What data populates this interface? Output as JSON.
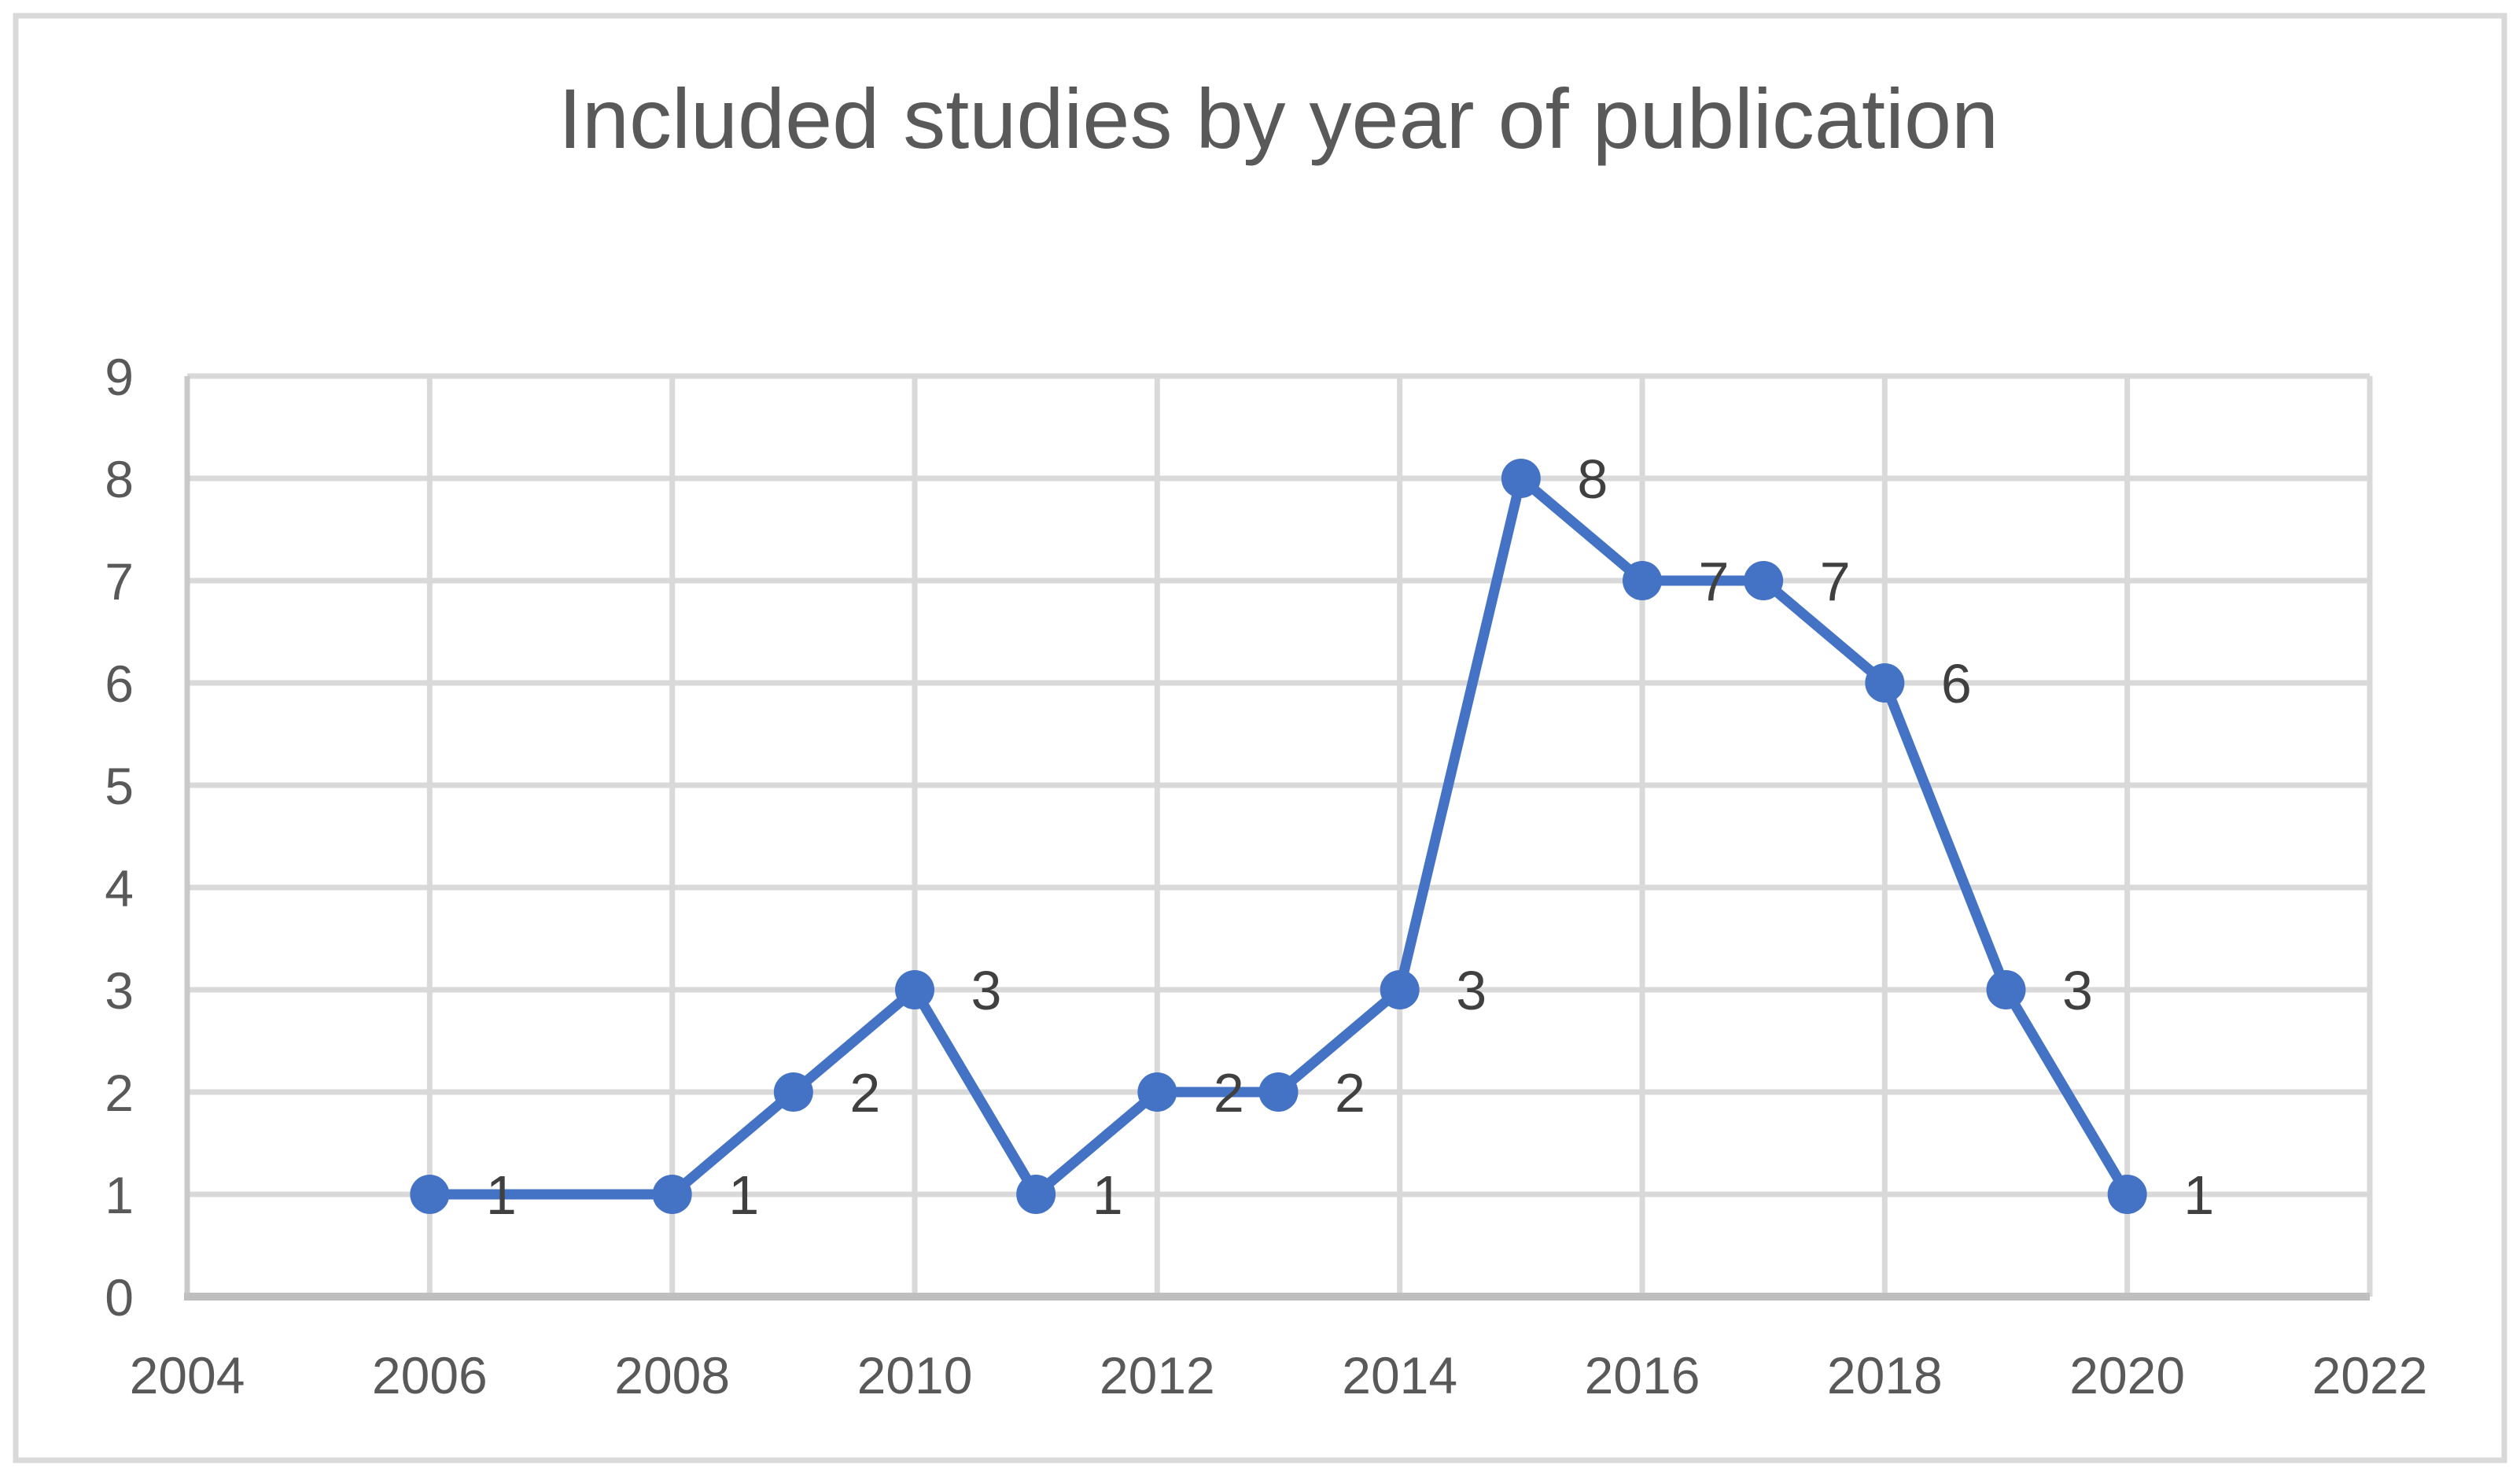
{
  "chart_data": {
    "type": "line",
    "title": "Included studies by year of publication",
    "series": [
      {
        "name": "Included studies",
        "points": [
          [
            2006,
            1
          ],
          [
            2008,
            1
          ],
          [
            2009,
            2
          ],
          [
            2010,
            3
          ],
          [
            2011,
            1
          ],
          [
            2012,
            2
          ],
          [
            2013,
            2
          ],
          [
            2014,
            3
          ],
          [
            2015,
            8
          ],
          [
            2016,
            7
          ],
          [
            2017,
            7
          ],
          [
            2018,
            6
          ],
          [
            2019,
            3
          ],
          [
            2020,
            1
          ]
        ]
      }
    ],
    "x_axis": {
      "min": 2004,
      "max": 2022,
      "tick_interval": 2,
      "tick_labels": [
        "2004",
        "2006",
        "2008",
        "2010",
        "2012",
        "2014",
        "2016",
        "2018",
        "2020",
        "2022"
      ]
    },
    "y_axis": {
      "min": 0,
      "max": 9,
      "tick_interval": 1,
      "tick_labels": [
        "0",
        "1",
        "2",
        "3",
        "4",
        "5",
        "6",
        "7",
        "8",
        "9"
      ]
    },
    "grid": true,
    "data_labels": true,
    "data_label_position": "right",
    "legend": "none",
    "colors": {
      "line": "#4472C4",
      "marker": "#4472C4",
      "data_label": "#404040",
      "tick_label": "#595959",
      "title": "#595959",
      "gridline": "#D9D9D9",
      "axis_line": "#BFBFBF",
      "left_axis_line": "#C9C9C9",
      "frame_border": "#D9D9D9",
      "background": "#FFFFFF"
    }
  }
}
